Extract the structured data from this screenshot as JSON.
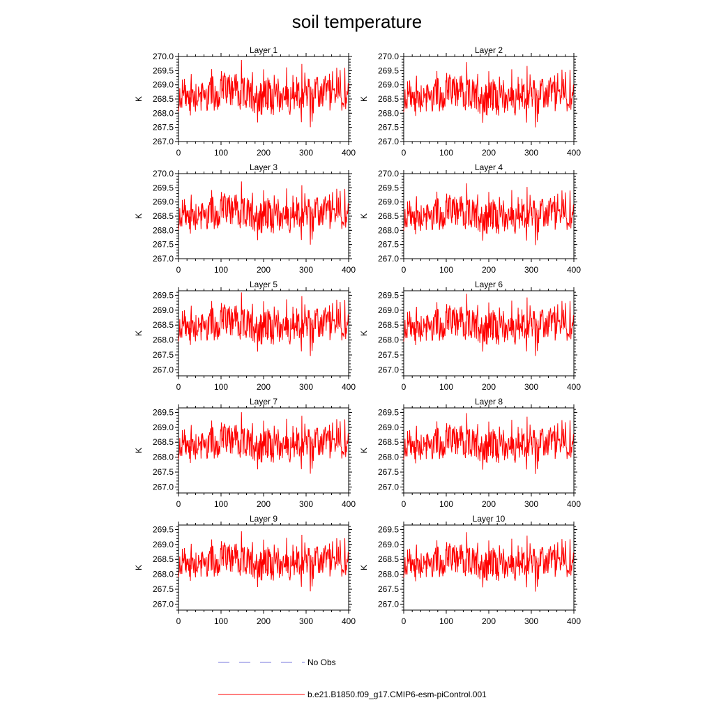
{
  "chart_data": {
    "type": "line",
    "title": "soil temperature",
    "ylabel": "K",
    "xlim": [
      0,
      400
    ],
    "xticks": [
      0,
      100,
      200,
      300,
      400
    ],
    "series_name": "b.e21.B1850.f09_g17.CMIP6-esm-piControl.001",
    "series_color": "#ff0000",
    "n_points": 400,
    "panels": [
      {
        "title": "Layer 1",
        "ylim": [
          267.0,
          270.0
        ],
        "yticks": [
          "267.0",
          "267.5",
          "268.0",
          "268.5",
          "269.0",
          "269.5",
          "270.0"
        ],
        "offset": 0.1,
        "amp": 1.0
      },
      {
        "title": "Layer 2",
        "ylim": [
          267.0,
          270.0
        ],
        "yticks": [
          "267.0",
          "267.5",
          "268.0",
          "268.5",
          "269.0",
          "269.5",
          "270.0"
        ],
        "offset": 0.06,
        "amp": 0.97
      },
      {
        "title": "Layer 3",
        "ylim": [
          267.0,
          270.0
        ],
        "yticks": [
          "267.0",
          "267.5",
          "268.0",
          "268.5",
          "269.0",
          "269.5",
          "270.0"
        ],
        "offset": 0.02,
        "amp": 0.94
      },
      {
        "title": "Layer 4",
        "ylim": [
          267.0,
          270.0
        ],
        "yticks": [
          "267.0",
          "267.5",
          "268.0",
          "268.5",
          "269.0",
          "269.5",
          "270.0"
        ],
        "offset": -0.02,
        "amp": 0.92
      },
      {
        "title": "Layer 5",
        "ylim": [
          266.8,
          269.65
        ],
        "yticks": [
          "267.0",
          "267.5",
          "268.0",
          "268.5",
          "269.0",
          "269.5"
        ],
        "offset": -0.06,
        "amp": 0.9
      },
      {
        "title": "Layer 6",
        "ylim": [
          266.8,
          269.65
        ],
        "yticks": [
          "267.0",
          "267.5",
          "268.0",
          "268.5",
          "269.0",
          "269.5"
        ],
        "offset": -0.08,
        "amp": 0.88
      },
      {
        "title": "Layer 7",
        "ylim": [
          266.8,
          269.65
        ],
        "yticks": [
          "267.0",
          "267.5",
          "268.0",
          "268.5",
          "269.0",
          "269.5"
        ],
        "offset": -0.11,
        "amp": 0.87
      },
      {
        "title": "Layer 8",
        "ylim": [
          266.8,
          269.65
        ],
        "yticks": [
          "267.0",
          "267.5",
          "268.0",
          "268.5",
          "269.0",
          "269.5"
        ],
        "offset": -0.13,
        "amp": 0.86
      },
      {
        "title": "Layer 9",
        "ylim": [
          266.8,
          269.65
        ],
        "yticks": [
          "267.0",
          "267.5",
          "268.0",
          "268.5",
          "269.0",
          "269.5"
        ],
        "offset": -0.15,
        "amp": 0.85
      },
      {
        "title": "Layer 10",
        "ylim": [
          266.8,
          269.65
        ],
        "yticks": [
          "267.0",
          "267.5",
          "268.0",
          "268.5",
          "269.0",
          "269.5"
        ],
        "offset": -0.17,
        "amp": 0.84
      }
    ],
    "base_mean": 268.55,
    "legend": [
      {
        "label": "No Obs",
        "color": "#7777dd",
        "style": "dashed"
      },
      {
        "label": "b.e21.B1850.f09_g17.CMIP6-esm-piControl.001",
        "color": "#ff0000",
        "style": "solid"
      }
    ]
  }
}
